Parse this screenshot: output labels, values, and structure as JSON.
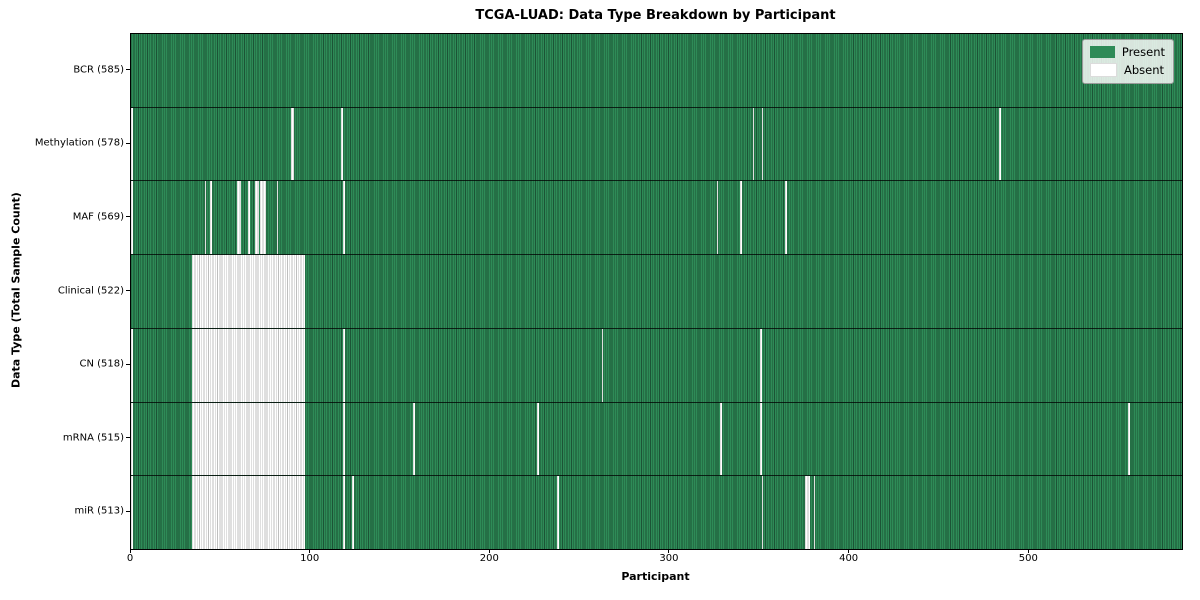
{
  "figure": {
    "title": "TCGA-LUAD: Data Type Breakdown by Participant",
    "xlabel": "Participant",
    "ylabel": "Data Type (Total Sample Count)"
  },
  "legend": {
    "items": [
      {
        "label": "Present",
        "color": "#2e8b57"
      },
      {
        "label": "Absent",
        "color": "#ffffff"
      }
    ]
  },
  "colors": {
    "present": "#2e8b57",
    "present_edge": "#1c5436",
    "absent": "#ffffff",
    "absent_edge": "#bfbfbf",
    "axis": "#000000"
  },
  "chart_data": {
    "type": "heatmap",
    "title": "TCGA-LUAD: Data Type Breakdown by Participant",
    "xlabel": "Participant",
    "ylabel": "Data Type (Total Sample Count)",
    "x_axis": {
      "ticks": [
        0,
        100,
        200,
        300,
        400,
        500
      ],
      "range": [
        0,
        585
      ]
    },
    "total_participants": 585,
    "legend_position": "upper right",
    "cell_states": {
      "present": "green",
      "absent": "white"
    },
    "rows": [
      {
        "name": "BCR",
        "label": "BCR (585)",
        "present_count": 585,
        "absent_runs": []
      },
      {
        "name": "Methylation",
        "label": "Methylation (578)",
        "present_count": 578,
        "absent_runs": [
          [
            0,
            1
          ],
          [
            89,
            2
          ],
          [
            117,
            1
          ],
          [
            346,
            1
          ],
          [
            351,
            1
          ],
          [
            483,
            1
          ]
        ]
      },
      {
        "name": "MAF",
        "label": "MAF (569)",
        "present_count": 569,
        "absent_runs": [
          [
            0,
            1
          ],
          [
            41,
            1
          ],
          [
            44,
            1
          ],
          [
            59,
            2
          ],
          [
            65,
            1
          ],
          [
            69,
            2
          ],
          [
            72,
            3
          ],
          [
            81,
            1
          ],
          [
            118,
            1
          ],
          [
            326,
            1
          ],
          [
            339,
            1
          ],
          [
            364,
            1
          ]
        ]
      },
      {
        "name": "Clinical",
        "label": "Clinical (522)",
        "present_count": 522,
        "absent_runs": [
          [
            34,
            63
          ]
        ]
      },
      {
        "name": "CN",
        "label": "CN (518)",
        "present_count": 518,
        "absent_runs": [
          [
            0,
            1
          ],
          [
            34,
            63
          ],
          [
            118,
            1
          ],
          [
            262,
            1
          ],
          [
            350,
            1
          ]
        ]
      },
      {
        "name": "mRNA",
        "label": "mRNA (515)",
        "present_count": 515,
        "absent_runs": [
          [
            0,
            1
          ],
          [
            34,
            63
          ],
          [
            118,
            1
          ],
          [
            157,
            1
          ],
          [
            226,
            1
          ],
          [
            328,
            1
          ],
          [
            350,
            1
          ],
          [
            555,
            1
          ]
        ]
      },
      {
        "name": "miR",
        "label": "miR (513)",
        "present_count": 513,
        "absent_runs": [
          [
            0,
            1
          ],
          [
            34,
            63
          ],
          [
            118,
            1
          ],
          [
            123,
            1
          ],
          [
            237,
            1
          ],
          [
            351,
            1
          ],
          [
            375,
            3
          ],
          [
            380,
            1
          ]
        ]
      }
    ]
  }
}
